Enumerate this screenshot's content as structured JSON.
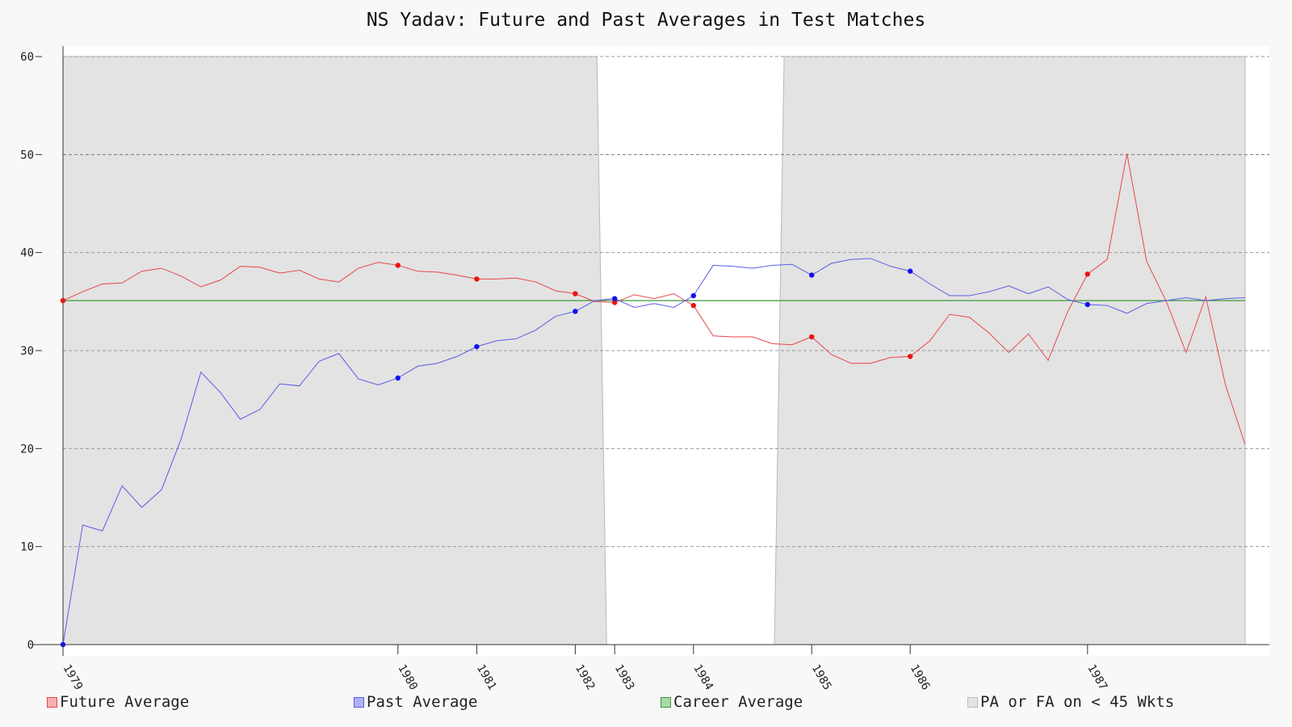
{
  "chart_data": {
    "type": "line",
    "title": "NS Yadav: Future and Past Averages in Test Matches",
    "xlabel": "",
    "ylabel": "",
    "ylim": [
      0,
      60
    ],
    "yticks": [
      0,
      10,
      20,
      30,
      40,
      50,
      60
    ],
    "grid": true,
    "legend_position": "bottom",
    "year_labels": [
      {
        "index": 0,
        "label": "1979"
      },
      {
        "index": 17,
        "label": "1980"
      },
      {
        "index": 21,
        "label": "1981"
      },
      {
        "index": 26,
        "label": "1982"
      },
      {
        "index": 28,
        "label": "1983"
      },
      {
        "index": 32,
        "label": "1984"
      },
      {
        "index": 38,
        "label": "1985"
      },
      {
        "index": 43,
        "label": "1986"
      },
      {
        "index": 52,
        "label": "1987"
      }
    ],
    "series": [
      {
        "name": "Future Average",
        "color": "#e8474a",
        "values": [
          35.1,
          36.0,
          36.8,
          36.9,
          38.1,
          38.4,
          37.6,
          36.5,
          37.2,
          38.6,
          38.5,
          37.9,
          38.2,
          37.3,
          37.0,
          38.4,
          39.0,
          38.7,
          38.1,
          38.0,
          37.7,
          37.3,
          37.3,
          37.4,
          37.0,
          36.1,
          35.8,
          35.0,
          34.9,
          35.7,
          35.3,
          35.8,
          34.6,
          31.5,
          31.4,
          31.4,
          30.7,
          30.6,
          31.4,
          29.6,
          28.7,
          28.7,
          29.3,
          29.4,
          31.0,
          33.7,
          33.4,
          31.8,
          29.8,
          31.7,
          29.0,
          34.0,
          37.8,
          39.3,
          50.1,
          39.1,
          35.0,
          29.8,
          35.5,
          26.5,
          20.4
        ],
        "markers": [
          0,
          17,
          21,
          26,
          28,
          32,
          38,
          43,
          52
        ]
      },
      {
        "name": "Past Average",
        "color": "#5b5be8",
        "values": [
          0.0,
          12.2,
          11.6,
          16.2,
          14.0,
          15.8,
          21.0,
          27.8,
          25.7,
          23.0,
          24.0,
          26.6,
          26.4,
          28.9,
          29.7,
          27.1,
          26.5,
          27.2,
          28.4,
          28.7,
          29.4,
          30.4,
          31.0,
          31.2,
          32.1,
          33.5,
          34.0,
          35.1,
          35.3,
          34.4,
          34.8,
          34.4,
          35.6,
          38.7,
          38.6,
          38.4,
          38.7,
          38.8,
          37.7,
          38.9,
          39.3,
          39.4,
          38.6,
          38.1,
          36.8,
          35.6,
          35.6,
          36.0,
          36.6,
          35.8,
          36.5,
          35.2,
          34.7,
          34.6,
          33.8,
          34.8,
          35.1,
          35.4,
          35.1,
          35.3,
          35.4
        ],
        "markers": [
          0,
          17,
          21,
          26,
          28,
          32,
          38,
          43,
          52
        ]
      },
      {
        "name": "Career Average",
        "color": "#3a9a3a",
        "values": [
          35.1,
          35.1
        ]
      },
      {
        "name": "PA or FA on < 45 Wkts",
        "color": "#e3e3e3",
        "regions": [
          [
            0,
            27.1
          ],
          [
            36.6,
            60
          ]
        ]
      }
    ]
  }
}
